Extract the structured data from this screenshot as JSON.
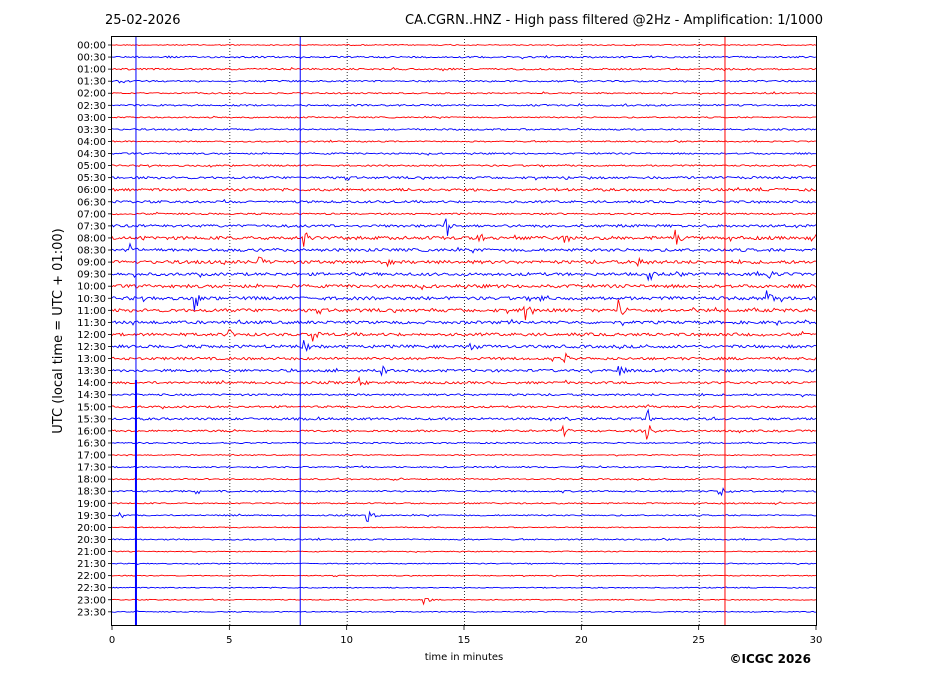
{
  "header": {
    "date": "25-02-2026",
    "title": "CA.CGRN..HNZ - High pass filtered @2Hz - Amplification: 1/1000"
  },
  "footer": {
    "copyright": "©ICGC 2026"
  },
  "colors": {
    "trace_a": "#ff0000",
    "trace_b": "#0000ff",
    "frame": "#000000",
    "grid": "#000000"
  },
  "chart_data": {
    "type": "line",
    "subtype": "helicorder",
    "title": "CA.CGRN..HNZ - High pass filtered @2Hz - Amplification: 1/1000",
    "date": "25-02-2026",
    "xlabel": "time in minutes",
    "ylabel": "UTC (local time = UTC + 01:00)",
    "xlim": [
      0,
      30
    ],
    "x_ticks": [
      0,
      5,
      10,
      15,
      20,
      25,
      30
    ],
    "x_tick_labels": [
      "0",
      "5",
      "10",
      "15",
      "20",
      "25",
      "30"
    ],
    "grid": "vertical dotted at 5-minute intervals",
    "row_labels": [
      "00:00",
      "00:30",
      "01:00",
      "01:30",
      "02:00",
      "02:30",
      "03:00",
      "03:30",
      "04:00",
      "04:30",
      "05:00",
      "05:30",
      "06:00",
      "06:30",
      "07:00",
      "07:30",
      "08:00",
      "08:30",
      "09:00",
      "09:30",
      "10:00",
      "10:30",
      "11:00",
      "11:30",
      "12:00",
      "12:30",
      "13:00",
      "13:30",
      "14:00",
      "14:30",
      "15:00",
      "15:30",
      "16:00",
      "16:30",
      "17:00",
      "17:30",
      "18:00",
      "18:30",
      "19:00",
      "19:30",
      "20:00",
      "20:30",
      "21:00",
      "21:30",
      "22:00",
      "22:30",
      "23:00",
      "23:30"
    ],
    "row_colors": [
      "red",
      "blue",
      "red",
      "blue",
      "red",
      "blue",
      "red",
      "blue",
      "red",
      "blue",
      "red",
      "blue",
      "red",
      "blue",
      "red",
      "blue",
      "red",
      "blue",
      "red",
      "blue",
      "red",
      "blue",
      "red",
      "blue",
      "red",
      "blue",
      "red",
      "blue",
      "red",
      "blue",
      "red",
      "blue",
      "red",
      "blue",
      "red",
      "blue",
      "red",
      "blue",
      "red",
      "blue",
      "red",
      "blue",
      "red",
      "blue",
      "red",
      "blue",
      "red",
      "blue"
    ],
    "row_noise_level": [
      0.3,
      0.5,
      0.5,
      0.5,
      0.4,
      0.5,
      0.4,
      0.5,
      0.4,
      0.5,
      0.5,
      0.7,
      0.8,
      0.7,
      0.5,
      0.8,
      1.0,
      0.9,
      1.0,
      0.9,
      1.0,
      1.0,
      1.0,
      0.9,
      0.9,
      0.9,
      0.8,
      0.8,
      0.7,
      0.6,
      0.6,
      0.7,
      0.6,
      0.4,
      0.3,
      0.4,
      0.4,
      0.5,
      0.4,
      0.4,
      0.3,
      0.4,
      0.3,
      0.3,
      0.3,
      0.3,
      0.3,
      0.3
    ],
    "events": [
      {
        "row": 15,
        "x": 14.2,
        "amp": 3.5
      },
      {
        "row": 16,
        "x": 8.2,
        "amp": 2.0
      },
      {
        "row": 16,
        "x": 15.6,
        "amp": 1.5
      },
      {
        "row": 16,
        "x": 19.2,
        "amp": 2.0
      },
      {
        "row": 16,
        "x": 24.0,
        "amp": 2.0
      },
      {
        "row": 17,
        "x": 0.8,
        "amp": 1.2
      },
      {
        "row": 18,
        "x": 6.3,
        "amp": 1.2
      },
      {
        "row": 18,
        "x": 11.7,
        "amp": 1.2
      },
      {
        "row": 18,
        "x": 22.4,
        "amp": 1.5
      },
      {
        "row": 19,
        "x": 22.9,
        "amp": 2.0
      },
      {
        "row": 19,
        "x": 27.9,
        "amp": 1.5
      },
      {
        "row": 21,
        "x": 3.5,
        "amp": 3.5
      },
      {
        "row": 21,
        "x": 18.2,
        "amp": 1.5
      },
      {
        "row": 21,
        "x": 27.9,
        "amp": 2.5
      },
      {
        "row": 22,
        "x": 17.6,
        "amp": 2.5
      },
      {
        "row": 22,
        "x": 21.6,
        "amp": 2.5
      },
      {
        "row": 24,
        "x": 5.0,
        "amp": 1.5
      },
      {
        "row": 24,
        "x": 8.6,
        "amp": 2.0
      },
      {
        "row": 25,
        "x": 8.1,
        "amp": 2.0
      },
      {
        "row": 25,
        "x": 15.3,
        "amp": 1.2
      },
      {
        "row": 26,
        "x": 19.3,
        "amp": 1.2
      },
      {
        "row": 27,
        "x": 21.6,
        "amp": 2.0
      },
      {
        "row": 27,
        "x": 11.5,
        "amp": 1.5
      },
      {
        "row": 28,
        "x": 10.5,
        "amp": 1.0
      },
      {
        "row": 31,
        "x": 22.8,
        "amp": 2.5
      },
      {
        "row": 32,
        "x": 19.2,
        "amp": 1.8
      },
      {
        "row": 32,
        "x": 22.8,
        "amp": 2.0
      },
      {
        "row": 36,
        "x": 12.0,
        "amp": 1.0
      },
      {
        "row": 37,
        "x": 3.6,
        "amp": 1.0
      },
      {
        "row": 37,
        "x": 25.9,
        "amp": 1.2
      },
      {
        "row": 39,
        "x": 0.3,
        "amp": 1.0
      },
      {
        "row": 39,
        "x": 10.9,
        "amp": 1.8
      },
      {
        "row": 46,
        "x": 13.3,
        "amp": 1.2
      }
    ],
    "vertical_markers": [
      {
        "x": 1.0,
        "color": "blue"
      },
      {
        "x": 8.0,
        "color": "blue"
      },
      {
        "x": 26.1,
        "color": "red"
      },
      {
        "x": 30.0,
        "color": "blue"
      }
    ]
  }
}
